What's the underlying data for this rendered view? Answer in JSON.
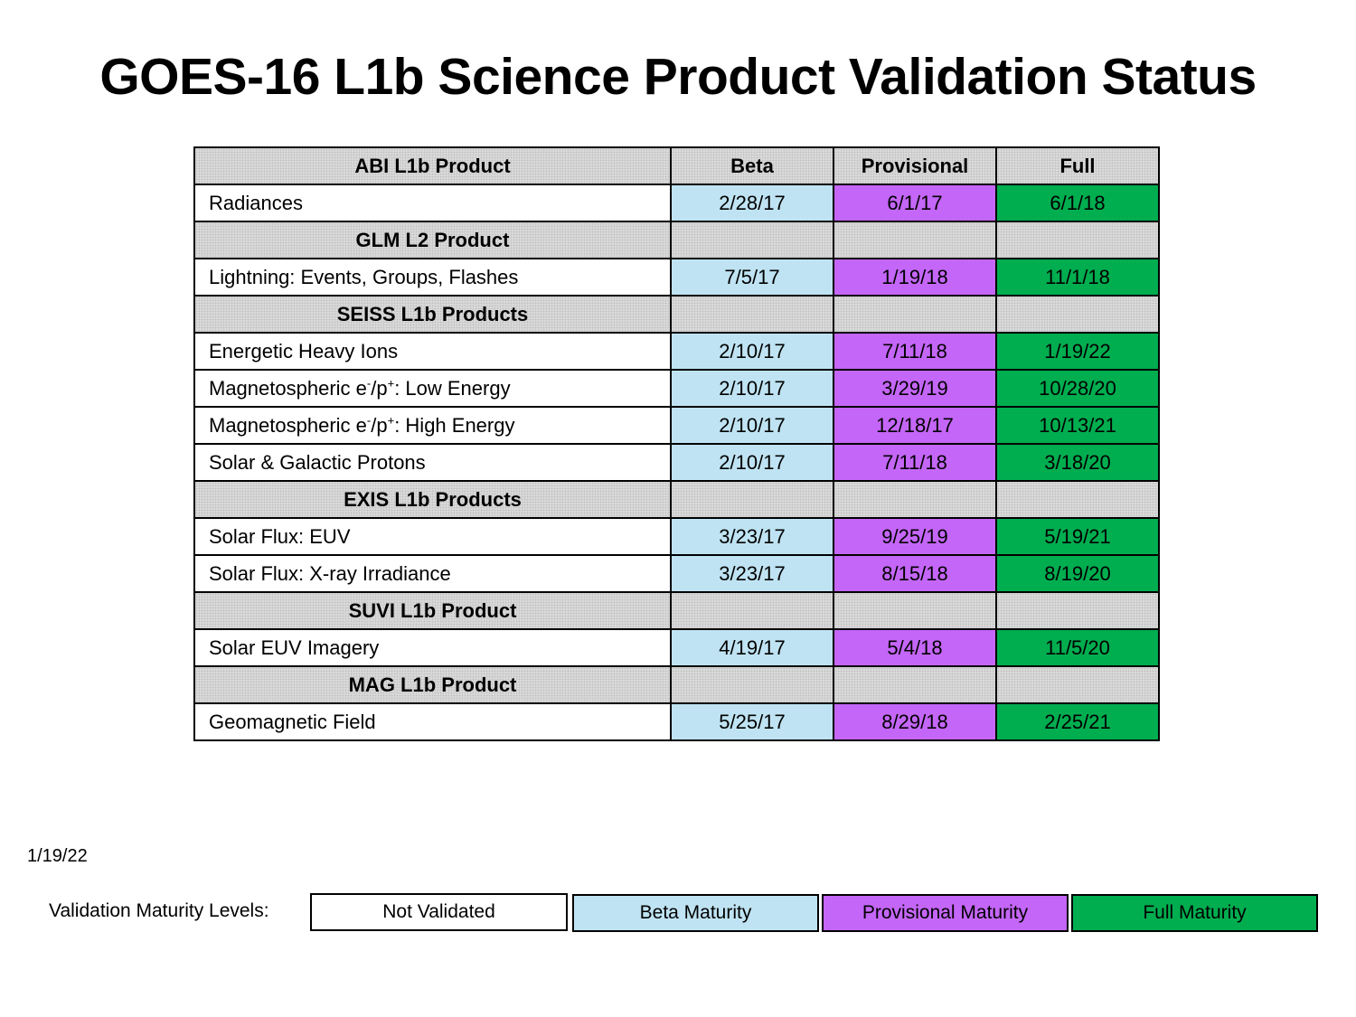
{
  "title": "GOES-16 L1b Science Product Validation Status",
  "header": {
    "product": "ABI L1b Product",
    "beta": "Beta",
    "provisional": "Provisional",
    "full": "Full"
  },
  "rows": [
    {
      "kind": "product",
      "name": "Radiances",
      "beta": "2/28/17",
      "provisional": "6/1/17",
      "full": "6/1/18"
    },
    {
      "kind": "section",
      "name": "GLM L2 Product"
    },
    {
      "kind": "product",
      "name": "Lightning: Events, Groups, Flashes",
      "beta": "7/5/17",
      "provisional": "1/19/18",
      "full": "11/1/18"
    },
    {
      "kind": "section",
      "name": "SEISS L1b Products"
    },
    {
      "kind": "product",
      "name": "Energetic Heavy Ions",
      "beta": "2/10/17",
      "provisional": "7/11/18",
      "full": "1/19/22"
    },
    {
      "kind": "product",
      "name_parts": [
        "Magnetospheric e",
        "-",
        "/p",
        "+",
        ": Low Energy"
      ],
      "beta": "2/10/17",
      "provisional": "3/29/19",
      "full": "10/28/20"
    },
    {
      "kind": "product",
      "name_parts": [
        "Magnetospheric e",
        "-",
        "/p",
        "+",
        ": High Energy"
      ],
      "beta": "2/10/17",
      "provisional": "12/18/17",
      "full": "10/13/21"
    },
    {
      "kind": "product",
      "name": "Solar & Galactic Protons",
      "beta": "2/10/17",
      "provisional": "7/11/18",
      "full": "3/18/20"
    },
    {
      "kind": "section",
      "name": "EXIS L1b Products"
    },
    {
      "kind": "product",
      "name": "Solar Flux: EUV",
      "beta": "3/23/17",
      "provisional": "9/25/19",
      "full": "5/19/21"
    },
    {
      "kind": "product",
      "name": "Solar Flux: X-ray Irradiance",
      "beta": "3/23/17",
      "provisional": "8/15/18",
      "full": "8/19/20"
    },
    {
      "kind": "section",
      "name": "SUVI L1b Product"
    },
    {
      "kind": "product",
      "name": "Solar EUV Imagery",
      "beta": "4/19/17",
      "provisional": "5/4/18",
      "full": "11/5/20"
    },
    {
      "kind": "section",
      "name": "MAG L1b Product"
    },
    {
      "kind": "product",
      "name": "Geomagnetic Field",
      "beta": "5/25/17",
      "provisional": "8/29/18",
      "full": "2/25/21"
    }
  ],
  "date": "1/19/22",
  "legend": {
    "label": "Validation Maturity Levels:",
    "items": [
      {
        "label": "Not Validated",
        "color": "#ffffff"
      },
      {
        "label": "Beta Maturity",
        "color": "#bfe3f2"
      },
      {
        "label": "Provisional Maturity",
        "color": "#c466f7"
      },
      {
        "label": "Full Maturity",
        "color": "#00ad4f"
      }
    ]
  }
}
